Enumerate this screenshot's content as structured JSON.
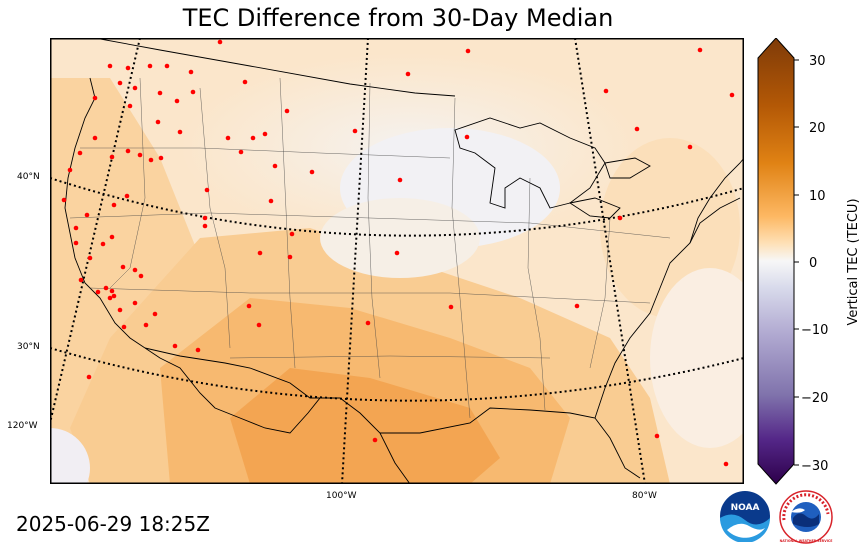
{
  "title": "TEC Difference from 30-Day Median",
  "timestamp": "2025-06-29 18:25Z",
  "lat_labels": [
    "40°N",
    "30°N"
  ],
  "lon_labels": [
    "120°W",
    "100°W",
    "80°W"
  ],
  "colorbar": {
    "label": "Vertical TEC (TECU)",
    "ticks": [
      "30",
      "20",
      "10",
      "0",
      "−10",
      "−20",
      "−30"
    ],
    "range": [
      -30,
      30
    ],
    "colors": {
      "high": "#7f3b08",
      "mid_high": "#e08214",
      "light_orange": "#fdb863",
      "neutral": "#f7f7f7",
      "light_purple": "#b2abd2",
      "mid_low": "#8073ac",
      "low": "#2d004b"
    }
  },
  "marker_color": "#ff0000",
  "logos": {
    "noaa": "NOAA",
    "nws": "NATIONAL WEATHER SERVICE"
  }
}
